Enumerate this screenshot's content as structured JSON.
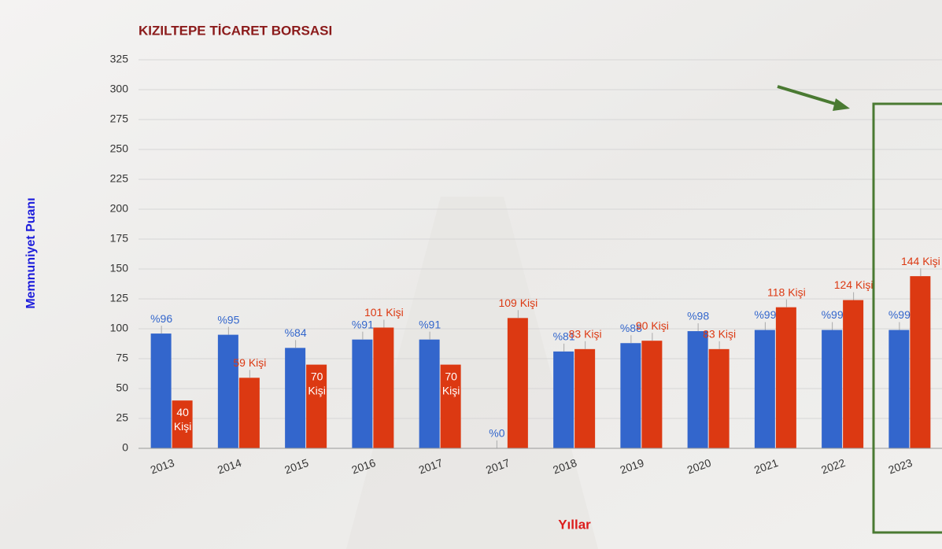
{
  "chart_data": {
    "type": "bar",
    "title": "KIZILTEPE TİCARET BORSASI",
    "y_label": "Memnuniyet Puanı",
    "x_label": "Yıllar",
    "categories": [
      "2013",
      "2014",
      "2015",
      "2016",
      "2017",
      "2017",
      "2018",
      "2019",
      "2020",
      "2021",
      "2022",
      "2023"
    ],
    "series": [
      {
        "color": "#3366cc",
        "values": [
          96,
          95,
          84,
          91,
          91,
          0,
          81,
          88,
          98,
          99,
          99,
          99
        ],
        "value_labels": [
          "%96",
          "%95",
          "%84",
          "%91",
          "%91",
          "%0",
          "%81",
          "%88",
          "%98",
          "%99",
          "%99",
          "%99"
        ]
      },
      {
        "color": "#dc3912",
        "values": [
          40,
          59,
          70,
          101,
          70,
          109,
          83,
          90,
          83,
          118,
          124,
          144
        ],
        "value_labels": [
          "40 Kişi",
          "59 Kişi",
          "70 Kişi",
          "101 Kişi",
          "70 Kişi",
          "109 Kişi",
          "83 Kişi",
          "90 Kişi",
          "83 Kişi",
          "118 Kişi",
          "124 Kişi",
          "144 Kişi"
        ]
      }
    ],
    "ylim": [
      0,
      325
    ],
    "yticks": [
      0,
      25,
      50,
      75,
      100,
      125,
      150,
      175,
      200,
      225,
      250,
      275,
      300,
      325
    ],
    "grid": true
  }
}
